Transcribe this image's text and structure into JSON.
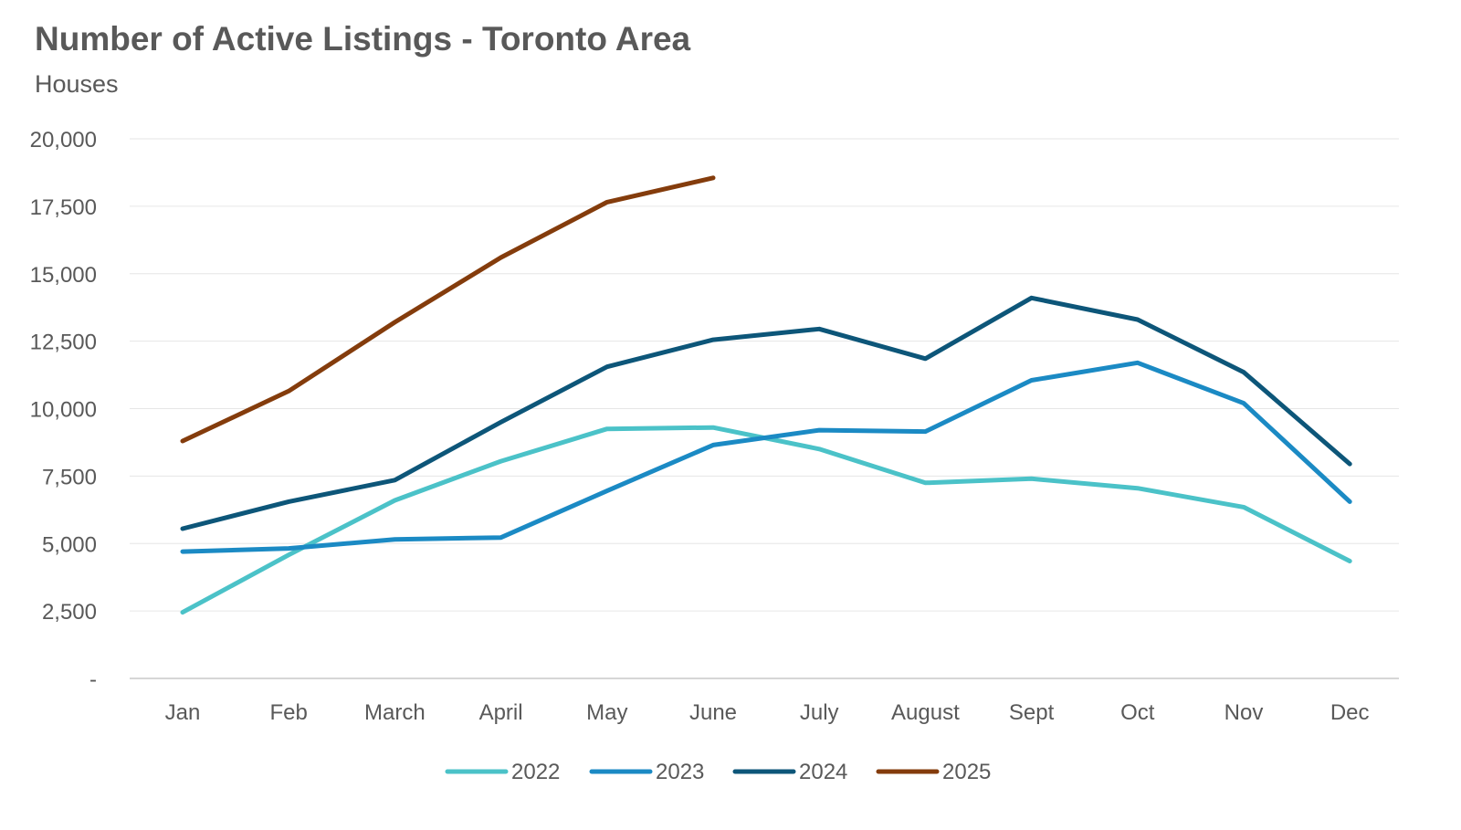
{
  "chart_data": {
    "type": "line",
    "title": "Number of Active Listings - Toronto Area",
    "subtitle": "Houses",
    "xlabel": "",
    "ylabel": "",
    "categories": [
      "Jan",
      "Feb",
      "March",
      "April",
      "May",
      "June",
      "July",
      "August",
      "Sept",
      "Oct",
      "Nov",
      "Dec"
    ],
    "ylim": [
      0,
      20000
    ],
    "yticks": [
      0,
      2500,
      5000,
      7500,
      10000,
      12500,
      15000,
      17500,
      20000
    ],
    "ytick_labels": [
      "-",
      "2,500",
      "5,000",
      "7,500",
      "10,000",
      "12,500",
      "15,000",
      "17,500",
      "20,000"
    ],
    "grid": "horizontal",
    "legend_position": "bottom",
    "series": [
      {
        "name": "2022",
        "color": "#4BC2C8",
        "values": [
          2450,
          4580,
          6600,
          8050,
          9250,
          9300,
          8500,
          7250,
          7400,
          7050,
          6350,
          4350
        ]
      },
      {
        "name": "2023",
        "color": "#1B8AC4",
        "values": [
          4700,
          4820,
          5150,
          5220,
          6950,
          8650,
          9200,
          9150,
          11050,
          11700,
          10200,
          6550
        ]
      },
      {
        "name": "2024",
        "color": "#0D5679",
        "values": [
          5550,
          6550,
          7350,
          9500,
          11550,
          12550,
          12950,
          11850,
          14100,
          13300,
          11350,
          7950
        ]
      },
      {
        "name": "2025",
        "color": "#843C0C",
        "values": [
          8800,
          10650,
          13200,
          15600,
          17650,
          18550,
          null,
          null,
          null,
          null,
          null,
          null
        ]
      }
    ]
  }
}
